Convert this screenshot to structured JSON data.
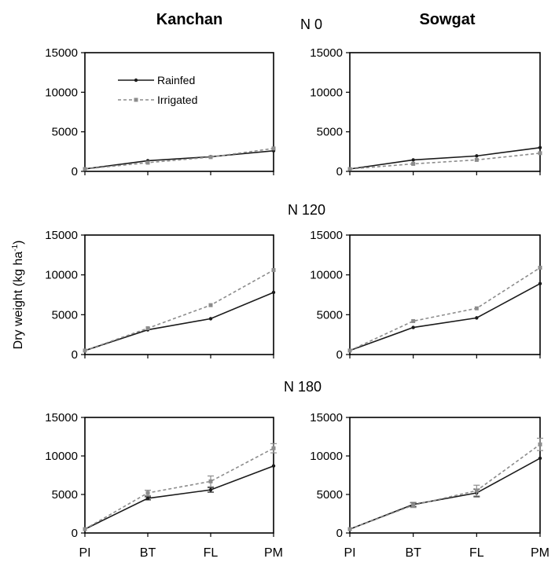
{
  "headers": {
    "columns": [
      "Kanchan",
      "Sowgat"
    ],
    "rows": [
      "N 0",
      "N 120",
      "N 180"
    ]
  },
  "ylabel_main": "Dry weight (kg ha",
  "ylabel_sup": "-1",
  "ylabel_close": ")",
  "legend": {
    "rainfed": "Rainfed",
    "irrigated": "Irrigated"
  },
  "colors": {
    "rainfed": "#1a1a1a",
    "irrigated": "#8c8c8c",
    "axis": "#000000"
  },
  "chart_data": [
    {
      "type": "line",
      "panel": "Kanchan N 0",
      "categories": [
        "PI",
        "BT",
        "FL",
        "PM"
      ],
      "ylim": [
        0,
        15000
      ],
      "yticks": [
        "0",
        "5000",
        "10000",
        "15000"
      ],
      "series": [
        {
          "name": "Rainfed",
          "values": [
            300,
            1350,
            1850,
            2600
          ],
          "err": [
            0,
            0,
            0,
            0
          ]
        },
        {
          "name": "Irrigated",
          "values": [
            300,
            1100,
            1800,
            2900
          ],
          "err": [
            0,
            0,
            0,
            0
          ]
        }
      ]
    },
    {
      "type": "line",
      "panel": "Sowgat N 0",
      "categories": [
        "PI",
        "BT",
        "FL",
        "PM"
      ],
      "ylim": [
        0,
        15000
      ],
      "yticks": [
        "0",
        "5000",
        "10000",
        "15000"
      ],
      "series": [
        {
          "name": "Rainfed",
          "values": [
            300,
            1450,
            1950,
            3000
          ],
          "err": [
            0,
            0,
            0,
            0
          ]
        },
        {
          "name": "Irrigated",
          "values": [
            300,
            950,
            1450,
            2300
          ],
          "err": [
            0,
            0,
            0,
            0
          ]
        }
      ]
    },
    {
      "type": "line",
      "panel": "Kanchan N 120",
      "categories": [
        "PI",
        "BT",
        "FL",
        "PM"
      ],
      "ylim": [
        0,
        15000
      ],
      "yticks": [
        "0",
        "5000",
        "10000",
        "15000"
      ],
      "series": [
        {
          "name": "Rainfed",
          "values": [
            500,
            3100,
            4500,
            7800
          ],
          "err": [
            0,
            0,
            0,
            0
          ]
        },
        {
          "name": "Irrigated",
          "values": [
            500,
            3300,
            6200,
            10600
          ],
          "err": [
            0,
            0,
            0,
            0
          ]
        }
      ]
    },
    {
      "type": "line",
      "panel": "Sowgat N 120",
      "categories": [
        "PI",
        "BT",
        "FL",
        "PM"
      ],
      "ylim": [
        0,
        15000
      ],
      "yticks": [
        "0",
        "5000",
        "10000",
        "15000"
      ],
      "series": [
        {
          "name": "Rainfed",
          "values": [
            500,
            3400,
            4600,
            8900
          ],
          "err": [
            0,
            0,
            0,
            0
          ]
        },
        {
          "name": "Irrigated",
          "values": [
            500,
            4200,
            5800,
            10900
          ],
          "err": [
            0,
            0,
            0,
            0
          ]
        }
      ]
    },
    {
      "type": "line",
      "panel": "Kanchan N 180",
      "categories": [
        "PI",
        "BT",
        "FL",
        "PM"
      ],
      "ylim": [
        0,
        15000
      ],
      "yticks": [
        "0",
        "5000",
        "10000",
        "15000"
      ],
      "series": [
        {
          "name": "Rainfed",
          "values": [
            500,
            4500,
            5600,
            8700
          ],
          "err": [
            0,
            200,
            300,
            0
          ]
        },
        {
          "name": "Irrigated",
          "values": [
            500,
            5200,
            6700,
            11000
          ],
          "err": [
            0,
            350,
            700,
            600
          ]
        }
      ]
    },
    {
      "type": "line",
      "panel": "Sowgat N 180",
      "categories": [
        "PI",
        "BT",
        "FL",
        "PM"
      ],
      "ylim": [
        0,
        15000
      ],
      "yticks": [
        "0",
        "5000",
        "10000",
        "15000"
      ],
      "series": [
        {
          "name": "Rainfed",
          "values": [
            500,
            3700,
            5200,
            9700
          ],
          "err": [
            0,
            250,
            500,
            0
          ]
        },
        {
          "name": "Irrigated",
          "values": [
            500,
            3600,
            5500,
            11500
          ],
          "err": [
            0,
            300,
            700,
            800
          ]
        }
      ]
    }
  ]
}
